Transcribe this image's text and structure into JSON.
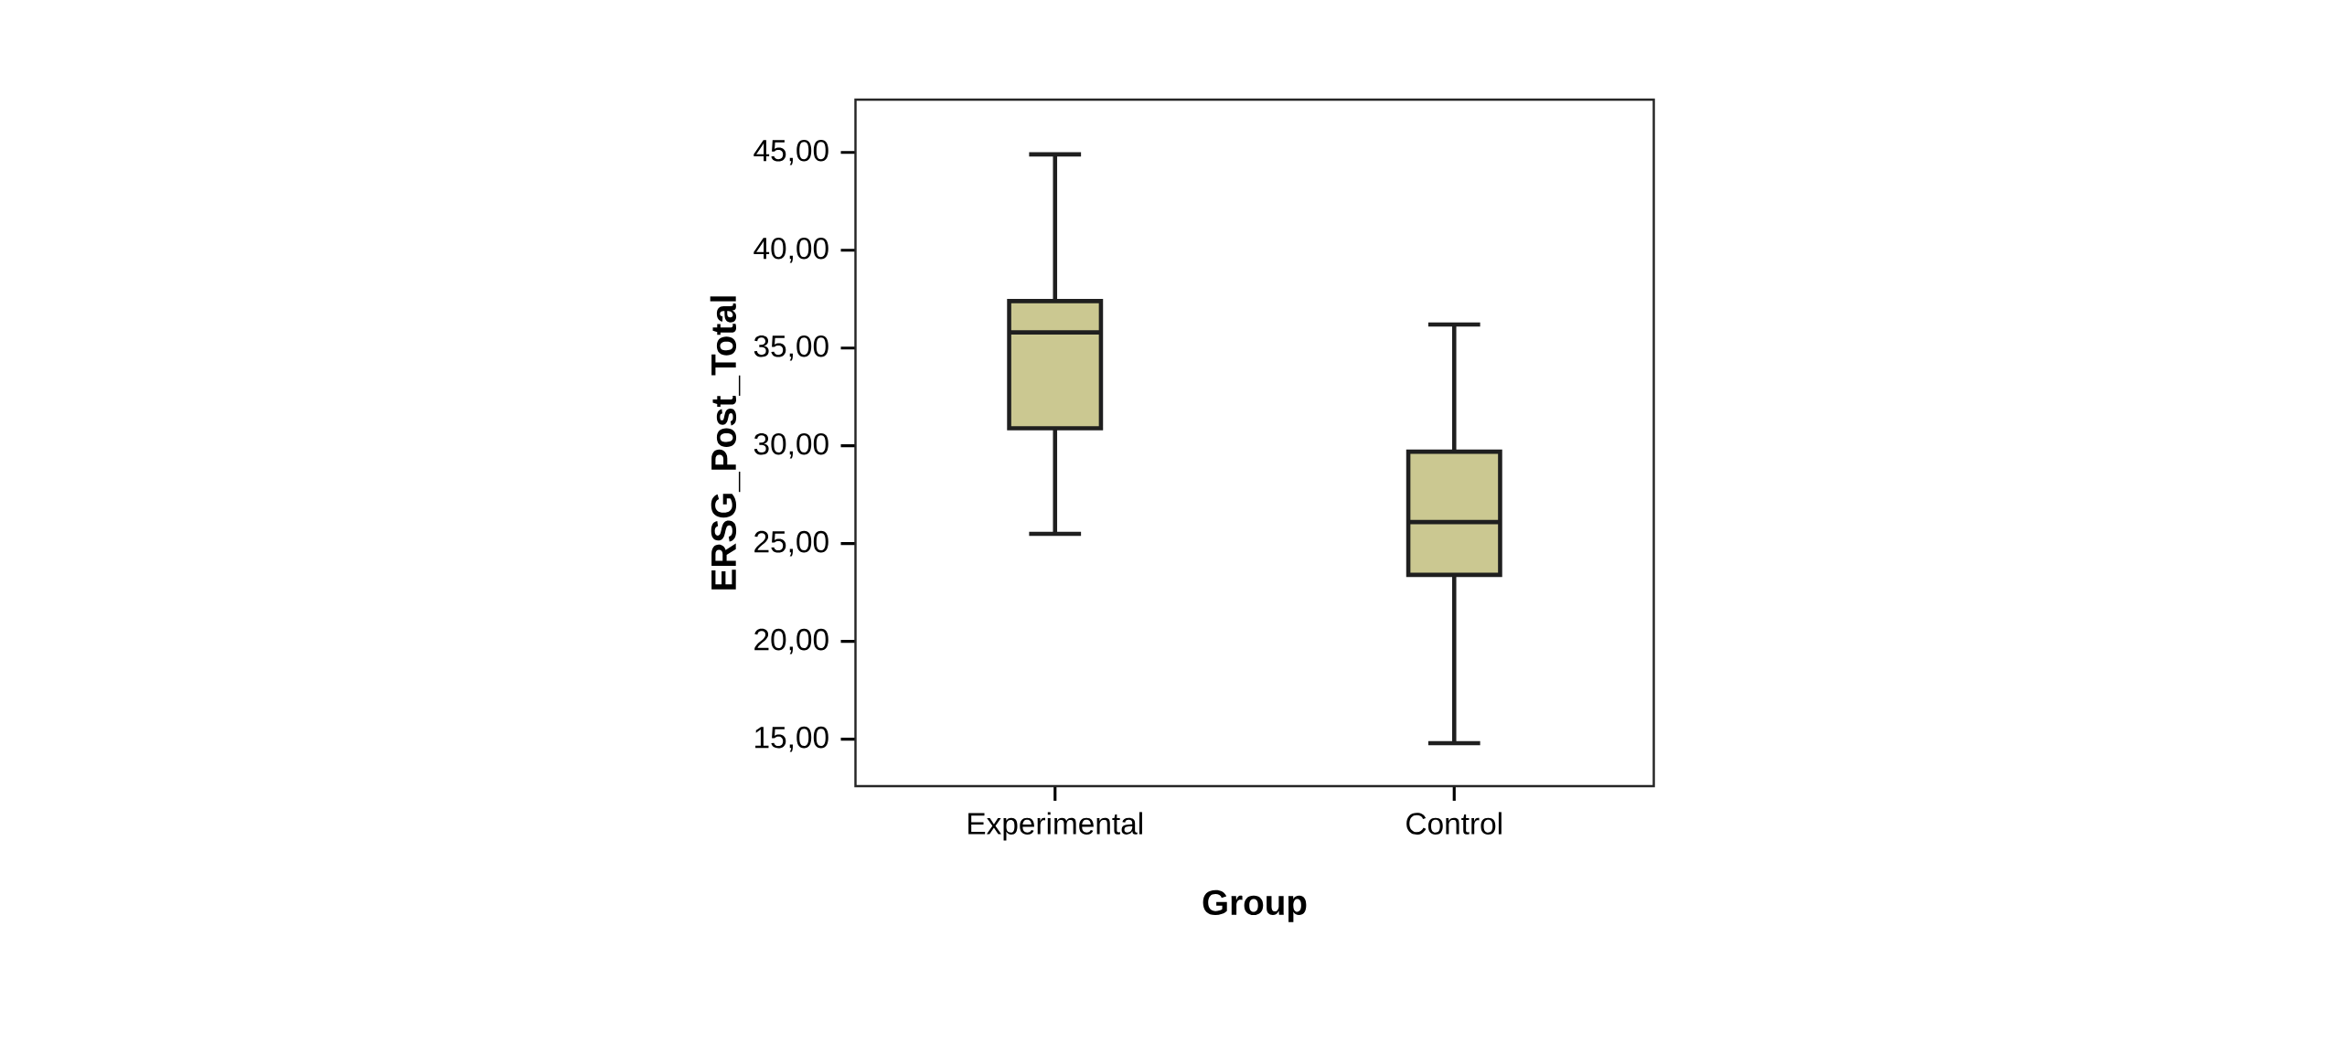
{
  "chart_data": {
    "type": "box",
    "xlabel": "Group",
    "ylabel": "ERSG_Post_Total",
    "categories": [
      "Experimental",
      "Control"
    ],
    "color": "#cbc891",
    "boxes": [
      {
        "low": 25.5,
        "q1": 30.9,
        "median": 35.8,
        "q3": 37.4,
        "high": 44.9
      },
      {
        "low": 14.8,
        "q1": 23.4,
        "median": 26.1,
        "q3": 29.7,
        "high": 36.2
      }
    ],
    "ylim": [
      12.6,
      47.7
    ],
    "yticks": [
      {
        "value": 15,
        "label": "15,00"
      },
      {
        "value": 20,
        "label": "20,00"
      },
      {
        "value": 25,
        "label": "25,00"
      },
      {
        "value": 30,
        "label": "30,00"
      },
      {
        "value": 35,
        "label": "35,00"
      },
      {
        "value": 40,
        "label": "40,00"
      },
      {
        "value": 45,
        "label": "45,00"
      }
    ]
  }
}
